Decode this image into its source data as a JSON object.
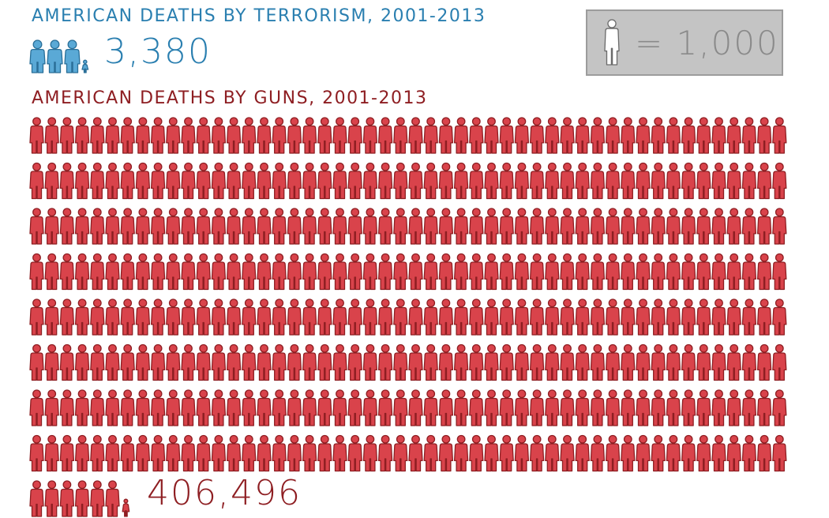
{
  "chart_data": {
    "type": "pictogram",
    "unit_value": 1000,
    "unit_label": "= 1,000",
    "series": [
      {
        "name": "AMERICAN DEATHS BY TERRORISM, 2001-2013",
        "total": 3380,
        "total_label": "3,380",
        "color": "#5aa9d6",
        "outline": "#2a6f98"
      },
      {
        "name": "AMERICAN DEATHS BY GUNS, 2001-2013",
        "total": 406496,
        "total_label": "406,496",
        "color": "#d9434b",
        "outline": "#8e1e22"
      }
    ]
  },
  "colors": {
    "terror_text": "#2a7fb0",
    "guns_text": "#8e1e22",
    "legend_bg": "#c4c4c4",
    "legend_person": "#ffffff"
  }
}
